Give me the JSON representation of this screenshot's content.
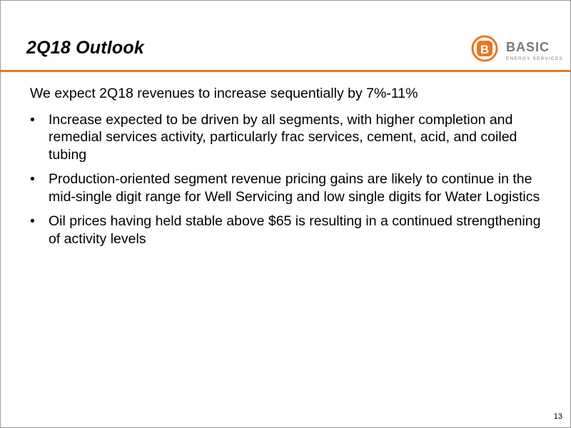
{
  "slide": {
    "title": "2Q18 Outlook",
    "logo": {
      "mark_letter": "B",
      "name": "BASIC",
      "tagline": "ENERGY SERVICES",
      "brand_color": "#e87722",
      "text_color": "#7a7a7a"
    },
    "accent_rule_color": "#e87722",
    "lead": "We expect 2Q18 revenues to increase sequentially by 7%-11%",
    "bullets": [
      {
        "marker": "•",
        "text": "Increase expected to be driven by all segments, with higher completion and remedial services activity, particularly frac services, cement, acid, and coiled tubing"
      },
      {
        "marker": "•",
        "text": "Production-oriented segment revenue pricing gains are likely to continue in the mid-single digit range for Well Servicing and low single digits for Water Logistics"
      },
      {
        "marker": "•",
        "text": "Oil prices having held stable above $65 is resulting in a continued strengthening of activity levels"
      }
    ],
    "page_number": "13"
  }
}
